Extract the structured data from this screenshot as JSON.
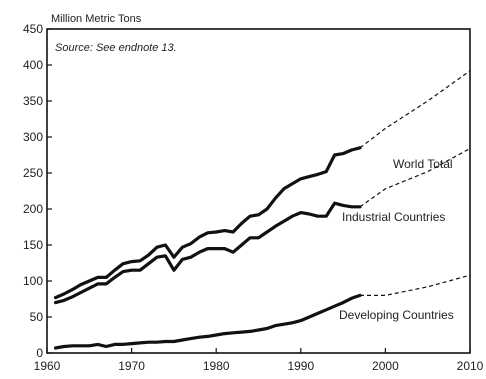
{
  "chart_data": {
    "type": "line",
    "title": "",
    "unit_label": "Million Metric Tons",
    "source_note": "Source: See endnote 13.",
    "xlabel": "",
    "ylabel": "",
    "xlim": [
      1960,
      2010
    ],
    "ylim": [
      0,
      450
    ],
    "x_ticks": [
      1960,
      1970,
      1980,
      1990,
      2000,
      2010
    ],
    "y_ticks": [
      0,
      50,
      100,
      150,
      200,
      250,
      300,
      350,
      400,
      450
    ],
    "grid": false,
    "legend": "inline labels",
    "series": [
      {
        "name": "World Total",
        "x": [
          1961,
          1962,
          1963,
          1964,
          1965,
          1966,
          1967,
          1968,
          1969,
          1970,
          1971,
          1972,
          1973,
          1974,
          1975,
          1976,
          1977,
          1978,
          1979,
          1980,
          1981,
          1982,
          1983,
          1984,
          1985,
          1986,
          1987,
          1988,
          1989,
          1990,
          1991,
          1992,
          1993,
          1994,
          1995,
          1996,
          1997
        ],
        "y": [
          77,
          82,
          88,
          95,
          100,
          105,
          105,
          115,
          124,
          127,
          128,
          136,
          147,
          150,
          133,
          147,
          152,
          161,
          167,
          168,
          170,
          168,
          180,
          190,
          192,
          200,
          215,
          228,
          235,
          242,
          245,
          248,
          252,
          275,
          277,
          282,
          285
        ],
        "projection_x": [
          1997,
          2000,
          2005,
          2010
        ],
        "projection_y": [
          285,
          312,
          350,
          392
        ]
      },
      {
        "name": "Industrial Countries",
        "x": [
          1961,
          1962,
          1963,
          1964,
          1965,
          1966,
          1967,
          1968,
          1969,
          1970,
          1971,
          1972,
          1973,
          1974,
          1975,
          1976,
          1977,
          1978,
          1979,
          1980,
          1981,
          1982,
          1983,
          1984,
          1985,
          1986,
          1987,
          1988,
          1989,
          1990,
          1991,
          1992,
          1993,
          1994,
          1995,
          1996,
          1997
        ],
        "y": [
          70,
          73,
          78,
          84,
          90,
          96,
          96,
          105,
          113,
          115,
          115,
          124,
          133,
          135,
          115,
          130,
          133,
          140,
          145,
          145,
          145,
          140,
          150,
          160,
          160,
          168,
          176,
          183,
          190,
          195,
          193,
          190,
          190,
          208,
          205,
          203,
          203
        ],
        "projection_x": [
          1997,
          2000,
          2005,
          2010
        ],
        "projection_y": [
          203,
          228,
          252,
          284
        ]
      },
      {
        "name": "Developing Countries",
        "x": [
          1961,
          1962,
          1963,
          1964,
          1965,
          1966,
          1967,
          1968,
          1969,
          1970,
          1971,
          1972,
          1973,
          1974,
          1975,
          1976,
          1977,
          1978,
          1979,
          1980,
          1981,
          1982,
          1983,
          1984,
          1985,
          1986,
          1987,
          1988,
          1989,
          1990,
          1991,
          1992,
          1993,
          1994,
          1995,
          1996,
          1997
        ],
        "y": [
          7,
          9,
          10,
          10,
          10,
          12,
          9,
          12,
          12,
          13,
          14,
          15,
          15,
          16,
          16,
          18,
          20,
          22,
          23,
          25,
          27,
          28,
          29,
          30,
          32,
          34,
          38,
          40,
          42,
          45,
          50,
          55,
          60,
          65,
          70,
          76,
          80
        ],
        "projection_x": [
          1997,
          2000,
          2005,
          2010
        ],
        "projection_y": [
          80,
          80,
          92,
          108
        ]
      }
    ]
  }
}
